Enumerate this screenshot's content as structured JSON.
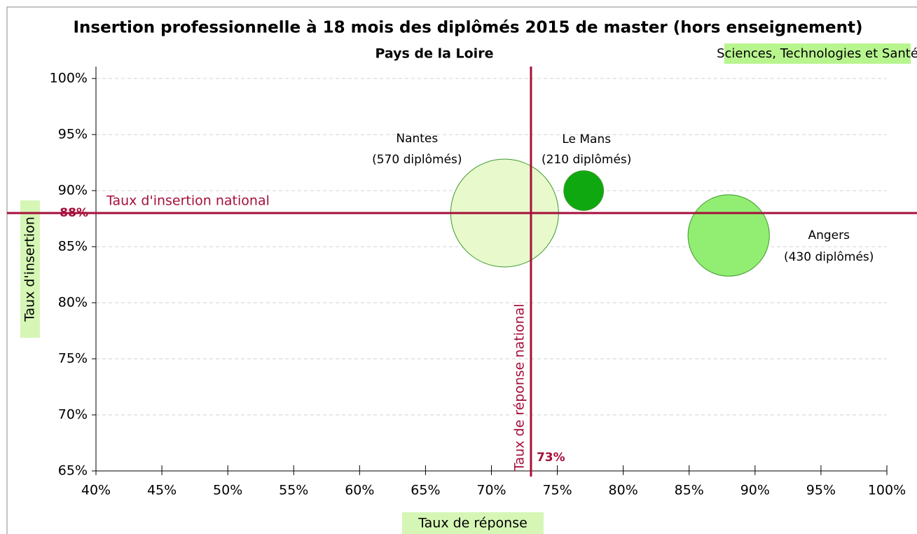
{
  "chart_data": {
    "type": "bubble",
    "title": "Insertion professionnelle à 18 mois des diplômés 2015 de master (hors enseignement)",
    "subtitle": "Pays de la Loire",
    "annotation": "Sciences, Technologies et Santé",
    "x_label": "Taux de réponse",
    "y_label": "Taux d'insertion",
    "xlim": [
      40,
      100
    ],
    "ylim": [
      65,
      100
    ],
    "xticks": [
      {
        "value": 40,
        "label": "40%"
      },
      {
        "value": 45,
        "label": "45%"
      },
      {
        "value": 50,
        "label": "50%"
      },
      {
        "value": 55,
        "label": "55%"
      },
      {
        "value": 60,
        "label": "60%"
      },
      {
        "value": 65,
        "label": "65%"
      },
      {
        "value": 70,
        "label": "70%"
      },
      {
        "value": 75,
        "label": "75%"
      },
      {
        "value": 80,
        "label": "80%"
      },
      {
        "value": 85,
        "label": "85%"
      },
      {
        "value": 90,
        "label": "90%"
      },
      {
        "value": 95,
        "label": "95%"
      },
      {
        "value": 100,
        "label": "100%"
      }
    ],
    "yticks": [
      {
        "value": 65,
        "label": "65%"
      },
      {
        "value": 70,
        "label": "70%"
      },
      {
        "value": 75,
        "label": "75%"
      },
      {
        "value": 80,
        "label": "80%"
      },
      {
        "value": 85,
        "label": "85%"
      },
      {
        "value": 90,
        "label": "90%"
      },
      {
        "value": 95,
        "label": "95%"
      },
      {
        "value": 100,
        "label": "100%"
      }
    ],
    "grid": true,
    "series": [
      {
        "name": "Nantes",
        "color": "#e8f9cc",
        "x": [
          71
        ],
        "values": [
          88
        ],
        "sizes": [
          570
        ],
        "size_labels": [
          "(570 diplômés)"
        ]
      },
      {
        "name": "Le Mans",
        "color": "#10a810",
        "x": [
          77
        ],
        "values": [
          90
        ],
        "sizes": [
          210
        ],
        "size_labels": [
          "(210 diplômés)"
        ]
      },
      {
        "name": "Angers",
        "color": "#92ee72",
        "x": [
          88
        ],
        "values": [
          86
        ],
        "sizes": [
          430
        ],
        "size_labels": [
          "(430 diplômés)"
        ]
      }
    ],
    "reference_lines": [
      {
        "name": "Taux d'insertion national",
        "axis": "y",
        "value": 88,
        "label": "88%",
        "color": "#a50f3a"
      },
      {
        "name": "Taux de réponse national",
        "axis": "x",
        "value": 73,
        "label": "73%",
        "color": "#a50f3a"
      }
    ]
  }
}
